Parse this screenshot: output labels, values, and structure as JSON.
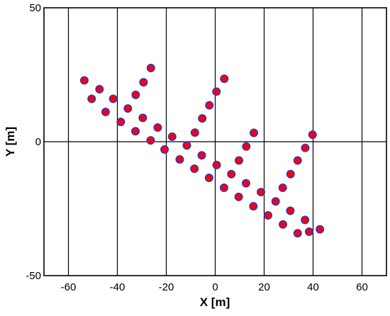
{
  "chart_data": {
    "type": "scatter",
    "title": "",
    "xlabel": "X [m]",
    "ylabel": "Y [m]",
    "xlim": [
      -70,
      70
    ],
    "ylim": [
      -50,
      50
    ],
    "x_ticks": [
      -60,
      -40,
      -20,
      0,
      20,
      40,
      60
    ],
    "y_ticks": [
      -50,
      0,
      50
    ],
    "x_tick_labels": [
      "-60",
      "-40",
      "-20",
      "0",
      "20",
      "40",
      "60"
    ],
    "y_tick_labels": [
      "-50",
      "0",
      "50"
    ],
    "grid": "vertical lines at x ticks, horizontal zero line",
    "legend": "none",
    "marker": {
      "shape": "circle",
      "fill": "#ff0000",
      "edge": "#3333cc"
    },
    "points": [
      {
        "x": -53.5,
        "y": 22.9
      },
      {
        "x": -50.5,
        "y": 16.0
      },
      {
        "x": -47.3,
        "y": 19.6
      },
      {
        "x": -44.8,
        "y": 11.1
      },
      {
        "x": -41.7,
        "y": 16.0
      },
      {
        "x": -38.6,
        "y": 7.4
      },
      {
        "x": -35.7,
        "y": 12.4
      },
      {
        "x": -32.5,
        "y": 17.5
      },
      {
        "x": -32.6,
        "y": 3.9
      },
      {
        "x": -29.6,
        "y": 8.9
      },
      {
        "x": -29.3,
        "y": 22.2
      },
      {
        "x": -26.4,
        "y": 0.5
      },
      {
        "x": -26.3,
        "y": 27.5
      },
      {
        "x": -23.5,
        "y": 5.3
      },
      {
        "x": -20.7,
        "y": -2.9
      },
      {
        "x": -17.6,
        "y": 1.9
      },
      {
        "x": -14.5,
        "y": -6.6
      },
      {
        "x": -11.6,
        "y": -1.4
      },
      {
        "x": -8.5,
        "y": -10.1
      },
      {
        "x": -8.3,
        "y": 3.4
      },
      {
        "x": -5.5,
        "y": -5.1
      },
      {
        "x": -5.3,
        "y": 8.7
      },
      {
        "x": -2.5,
        "y": -13.5
      },
      {
        "x": -2.4,
        "y": 13.6
      },
      {
        "x": 0.6,
        "y": -8.7
      },
      {
        "x": 0.5,
        "y": 18.7
      },
      {
        "x": 3.6,
        "y": -17.2
      },
      {
        "x": 3.7,
        "y": 23.5
      },
      {
        "x": 6.6,
        "y": -12.1
      },
      {
        "x": 9.6,
        "y": -20.6
      },
      {
        "x": 9.7,
        "y": -7.0
      },
      {
        "x": 12.6,
        "y": -15.5
      },
      {
        "x": 12.7,
        "y": -1.8
      },
      {
        "x": 15.6,
        "y": -24.1
      },
      {
        "x": 15.8,
        "y": 3.3
      },
      {
        "x": 18.7,
        "y": -18.8
      },
      {
        "x": 21.6,
        "y": -27.5
      },
      {
        "x": 24.7,
        "y": -22.3
      },
      {
        "x": 27.7,
        "y": -30.9
      },
      {
        "x": 27.6,
        "y": -17.2
      },
      {
        "x": 30.7,
        "y": -25.8
      },
      {
        "x": 30.8,
        "y": -12.1
      },
      {
        "x": 33.7,
        "y": -34.2
      },
      {
        "x": 33.7,
        "y": -7.0
      },
      {
        "x": 36.7,
        "y": -29.2
      },
      {
        "x": 36.8,
        "y": -2.3
      },
      {
        "x": 38.4,
        "y": -33.6
      },
      {
        "x": 39.8,
        "y": 2.6
      },
      {
        "x": 42.8,
        "y": -32.7
      }
    ]
  }
}
